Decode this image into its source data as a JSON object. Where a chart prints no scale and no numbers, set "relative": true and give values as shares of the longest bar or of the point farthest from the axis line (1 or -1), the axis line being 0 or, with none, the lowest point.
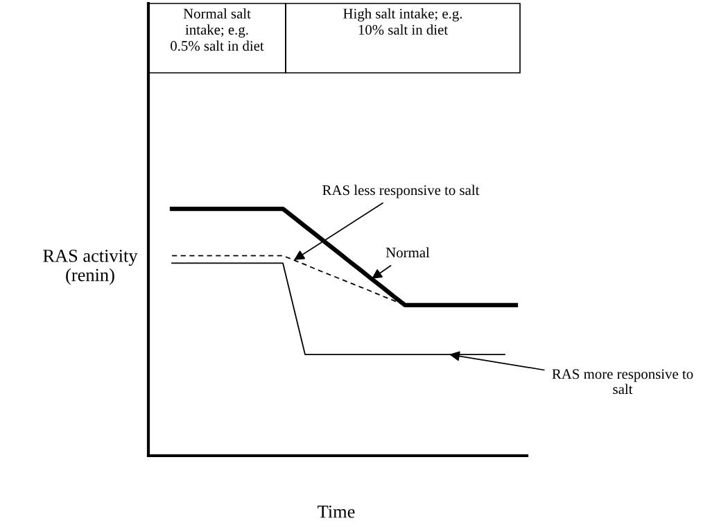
{
  "chart_data": {
    "type": "line",
    "relative": true,
    "tick_labels": false,
    "legend": false,
    "xlabel": "Time",
    "ylabel": "RAS activity\n(renin)",
    "annotations": [
      "Normal salt\nintake; e.g.\n0.5% salt in diet",
      "High salt intake; e.g.\n10% salt in diet"
    ],
    "categories": [
      null,
      null,
      null,
      null,
      null,
      null,
      null,
      null,
      null,
      null,
      null,
      null,
      null,
      null,
      null,
      null,
      null,
      null,
      null,
      null,
      null,
      null,
      null,
      null,
      null,
      null,
      null,
      null,
      null,
      null,
      null,
      null
    ],
    "series": [
      {
        "name": "Normal",
        "color": "#000000",
        "line_style": "solid",
        "values": [
          1,
          1,
          1,
          1,
          1,
          1,
          1,
          1,
          1,
          1,
          1,
          0.965,
          0.929,
          0.894,
          0.858,
          0.823,
          0.787,
          0.752,
          0.716,
          0.681,
          0.645,
          0.61,
          0.61,
          0.61,
          0.61,
          0.61,
          0.61,
          0.61,
          0.61,
          0.61,
          0.61,
          0.61
        ]
      },
      {
        "name": "RAS less responsive to salt",
        "color": "#000000",
        "line_style": "dashed",
        "values": [
          0.81,
          0.81,
          0.81,
          0.81,
          0.81,
          0.81,
          0.81,
          0.81,
          0.81,
          0.81,
          0.81,
          0.792,
          0.774,
          0.755,
          0.737,
          0.719,
          0.701,
          0.683,
          0.665,
          0.646,
          0.628,
          0.61,
          null,
          null,
          null,
          null,
          null,
          null,
          null,
          null,
          null,
          null
        ]
      },
      {
        "name": "RAS more responsive to salt",
        "color": "#000000",
        "line_style": "solid",
        "values": [
          0.78,
          0.78,
          0.78,
          0.78,
          0.78,
          0.78,
          0.78,
          0.78,
          0.78,
          0.78,
          0.78,
          0.595,
          0.41,
          0.41,
          0.41,
          0.41,
          0.41,
          0.41,
          0.41,
          0.41,
          0.41,
          0.41,
          0.41,
          0.41,
          0.41,
          0.41,
          0.41,
          0.41,
          0.41,
          0.41,
          0.41,
          null
        ]
      }
    ]
  }
}
